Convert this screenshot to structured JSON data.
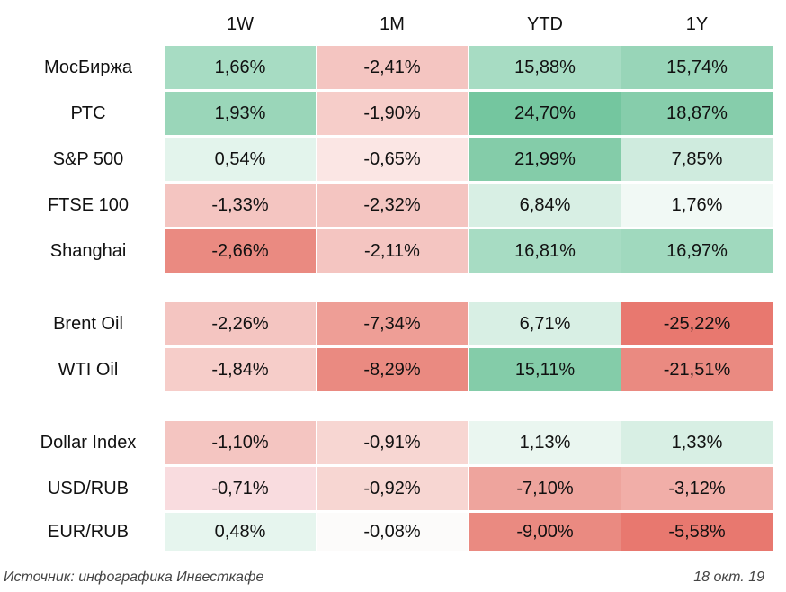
{
  "chart_data": {
    "type": "table",
    "columns": [
      "1W",
      "1M",
      "YTD",
      "1Y"
    ],
    "groups": [
      {
        "rows": [
          {
            "label": "МосБиржа",
            "values": [
              "1,66%",
              "-2,41%",
              "15,88%",
              "15,74%"
            ],
            "numeric": [
              1.66,
              -2.41,
              15.88,
              15.74
            ]
          },
          {
            "label": "РТС",
            "values": [
              "1,93%",
              "-1,90%",
              "24,70%",
              "18,87%"
            ],
            "numeric": [
              1.93,
              -1.9,
              24.7,
              18.87
            ]
          },
          {
            "label": "S&P 500",
            "values": [
              "0,54%",
              "-0,65%",
              "21,99%",
              "7,85%"
            ],
            "numeric": [
              0.54,
              -0.65,
              21.99,
              7.85
            ]
          },
          {
            "label": "FTSE 100",
            "values": [
              "-1,33%",
              "-2,32%",
              "6,84%",
              "1,76%"
            ],
            "numeric": [
              -1.33,
              -2.32,
              6.84,
              1.76
            ]
          },
          {
            "label": "Shanghai",
            "values": [
              "-2,66%",
              "-2,11%",
              "16,81%",
              "16,97%"
            ],
            "numeric": [
              -2.66,
              -2.11,
              16.81,
              16.97
            ]
          }
        ]
      },
      {
        "rows": [
          {
            "label": "Brent Oil",
            "values": [
              "-2,26%",
              "-7,34%",
              "6,71%",
              "-25,22%"
            ],
            "numeric": [
              -2.26,
              -7.34,
              6.71,
              -25.22
            ]
          },
          {
            "label": "WTI Oil",
            "values": [
              "-1,84%",
              "-8,29%",
              "15,11%",
              "-21,51%"
            ],
            "numeric": [
              -1.84,
              -8.29,
              15.11,
              -21.51
            ]
          }
        ]
      },
      {
        "rows": [
          {
            "label": "Dollar Index",
            "values": [
              "-1,10%",
              "-0,91%",
              "1,13%",
              "1,33%"
            ],
            "numeric": [
              -1.1,
              -0.91,
              1.13,
              1.33
            ]
          },
          {
            "label": "USD/RUB",
            "values": [
              "-0,71%",
              "-0,92%",
              "-7,10%",
              "-3,12%"
            ],
            "numeric": [
              -0.71,
              -0.92,
              -7.1,
              -3.12
            ]
          },
          {
            "label": "EUR/RUB",
            "values": [
              "0,48%",
              "-0,08%",
              "-9,00%",
              "-5,58%"
            ],
            "numeric": [
              0.48,
              -0.08,
              -9.0,
              -5.58
            ]
          }
        ]
      }
    ],
    "cell_colors": [
      [
        "#a7dcc3",
        "#f4c5c1",
        "#a7dcc3",
        "#98d5b8"
      ],
      [
        "#9ad6b9",
        "#f6cdc9",
        "#74c69f",
        "#86cdab"
      ],
      [
        "#e3f4ec",
        "#fbe6e4",
        "#84cca9",
        "#cfebde"
      ],
      [
        "#f4c5c1",
        "#f4c5c1",
        "#d8efe4",
        "#f1f9f5"
      ],
      [
        "#ea8a81",
        "#f4c5c1",
        "#a7dcc3",
        "#a0d9be"
      ],
      [
        "#f4c5c1",
        "#ee9e96",
        "#d8efe4",
        "#e8786f"
      ],
      [
        "#f6cdc9",
        "#ea8a81",
        "#84cca9",
        "#ea8a81"
      ],
      [
        "#f4c5c1",
        "#f7d6d2",
        "#eaf6f0",
        "#d8efe4"
      ],
      [
        "#f9dcdf",
        "#f7d6d2",
        "#eea49d",
        "#f1aea8"
      ],
      [
        "#e6f5ee",
        "#fcfbfa",
        "#ea8a81",
        "#e8786f"
      ]
    ]
  },
  "footer": {
    "source": "Источник: инфографика Инвесткафе",
    "date": "18 окт. 19"
  }
}
